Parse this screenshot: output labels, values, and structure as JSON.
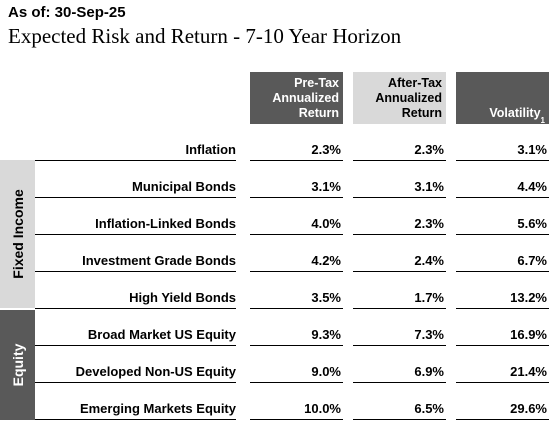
{
  "as_of": "As of: 30-Sep-25",
  "title": "Expected Risk and Return - 7-10 Year Horizon",
  "headers": {
    "pretax": [
      "Pre-Tax",
      "Annualized",
      "Return"
    ],
    "aftertax": [
      "After-Tax",
      "Annualized",
      "Return"
    ],
    "volatility": "Volatility",
    "volatility_footnote": "1"
  },
  "groups": {
    "fixed_income": "Fixed Income",
    "equity": "Equity"
  },
  "rows": [
    {
      "name": "Inflation",
      "pretax": "2.3%",
      "aftertax": "2.3%",
      "volatility": "3.1%"
    },
    {
      "name": "Municipal Bonds",
      "pretax": "3.1%",
      "aftertax": "3.1%",
      "volatility": "4.4%"
    },
    {
      "name": "Inflation-Linked Bonds",
      "pretax": "4.0%",
      "aftertax": "2.3%",
      "volatility": "5.6%"
    },
    {
      "name": "Investment Grade Bonds",
      "pretax": "4.2%",
      "aftertax": "2.4%",
      "volatility": "6.7%"
    },
    {
      "name": "High Yield Bonds",
      "pretax": "3.5%",
      "aftertax": "1.7%",
      "volatility": "13.2%"
    },
    {
      "name": "Broad Market US Equity",
      "pretax": "9.3%",
      "aftertax": "7.3%",
      "volatility": "16.9%"
    },
    {
      "name": "Developed Non-US Equity",
      "pretax": "9.0%",
      "aftertax": "6.9%",
      "volatility": "21.4%"
    },
    {
      "name": "Emerging Markets Equity",
      "pretax": "10.0%",
      "aftertax": "6.5%",
      "volatility": "29.6%"
    }
  ]
}
